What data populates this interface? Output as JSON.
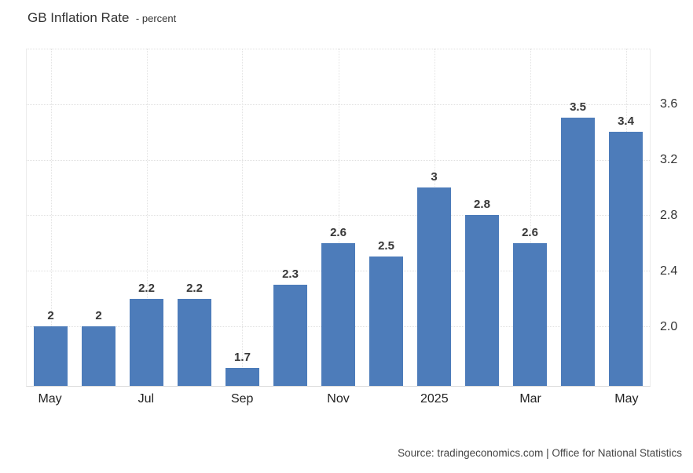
{
  "header": {
    "title": "GB Inflation Rate",
    "subtitle": "- percent"
  },
  "source": "Source: tradingeconomics.com | Office for National Statistics",
  "colors": {
    "bar": "#4d7cba",
    "grid": "#dfdfdf",
    "value_label": "#383838"
  },
  "chart_data": {
    "type": "bar",
    "title": "GB Inflation Rate - percent",
    "xlabel": "",
    "ylabel": "percent",
    "categories": [
      "May",
      "",
      "Jul",
      "",
      "Sep",
      "",
      "Nov",
      "",
      "2025",
      "",
      "Mar",
      "",
      "May"
    ],
    "values": [
      2,
      2,
      2.2,
      2.2,
      1.7,
      2.3,
      2.6,
      2.5,
      3,
      2.8,
      2.6,
      3.5,
      3.4
    ],
    "value_labels": [
      "2",
      "2",
      "2.2",
      "2.2",
      "1.7",
      "2.3",
      "2.6",
      "2.5",
      "3",
      "2.8",
      "2.6",
      "3.5",
      "3.4"
    ],
    "y_ticks": [
      {
        "value": 2.0,
        "label": "2.0"
      },
      {
        "value": 2.4,
        "label": "2.4"
      },
      {
        "value": 2.8,
        "label": "2.8"
      },
      {
        "value": 3.2,
        "label": "3.2"
      },
      {
        "value": 3.6,
        "label": "3.6"
      }
    ],
    "grid_values": [
      2.0,
      2.4,
      2.8,
      3.2,
      3.6,
      4.0
    ],
    "ylim": [
      1.57,
      4.0
    ],
    "grid": "dotted",
    "legend_position": "none",
    "y_axis_side": "right"
  }
}
